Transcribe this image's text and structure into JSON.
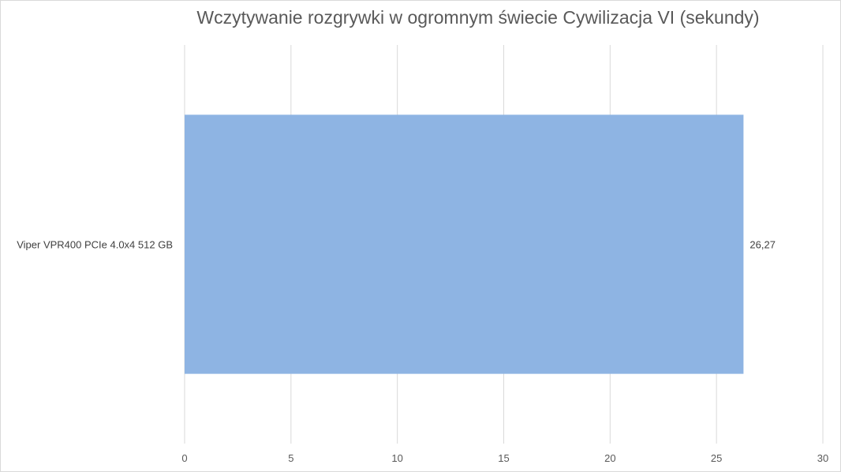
{
  "chart_data": {
    "type": "bar",
    "orientation": "horizontal",
    "title": "Wczytywanie rozgrywki w ogromnym świecie Cywilizacja VI (sekundy)",
    "categories": [
      "Viper VPR400 PCIe 4.0x4 512 GB"
    ],
    "series": [
      {
        "values": [
          26.27
        ],
        "labels": [
          "26,27"
        ],
        "color": "#8eb4e3"
      }
    ],
    "xlim": [
      0,
      30
    ],
    "xticks": [
      0,
      5,
      10,
      15,
      20,
      25,
      30
    ],
    "grid": true,
    "legend": "none",
    "gridline_color": "#d9d9d9"
  }
}
